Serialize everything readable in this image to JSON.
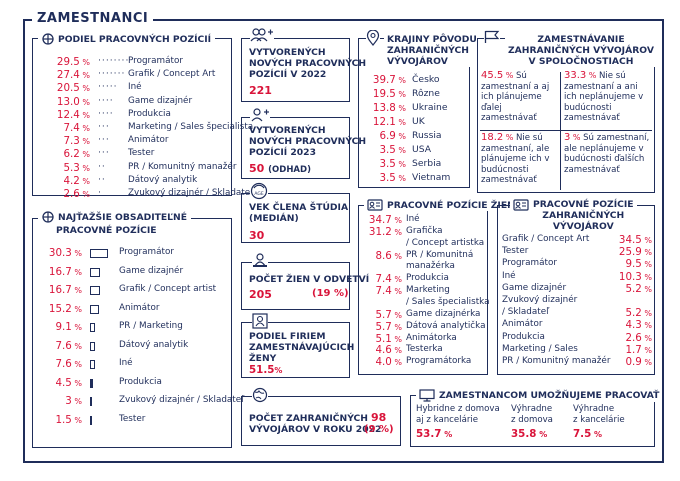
{
  "title": "ZAMESTNANCI",
  "positions": {
    "title": "PODIEL PRACOVNÝCH POZÍCIÍ",
    "items": [
      {
        "value": "29.5",
        "dots": "········",
        "label": "Programátor"
      },
      {
        "value": "27.4",
        "dots": "·······",
        "label": "Grafik / Concept Art"
      },
      {
        "value": "20.5",
        "dots": "·····",
        "label": "Iné"
      },
      {
        "value": "13.0",
        "dots": "····",
        "label": "Game dizajnér"
      },
      {
        "value": "12.4",
        "dots": "····",
        "label": "Produkcia"
      },
      {
        "value": "7.4",
        "dots": "···",
        "label": "Marketing / Sales špecialista"
      },
      {
        "value": "7.3",
        "dots": "···",
        "label": "Animátor"
      },
      {
        "value": "6.2",
        "dots": "···",
        "label": "Tester"
      },
      {
        "value": "5.3",
        "dots": "··",
        "label": "PR / Komunitný manažér"
      },
      {
        "value": "4.2",
        "dots": "··",
        "label": "Dátový analytik"
      },
      {
        "value": "2.6",
        "dots": "·",
        "label": "Zvukový dizajnér / Skladateľ"
      }
    ]
  },
  "hardest": {
    "title_line1": "NAJŤAŽŠIE OBSADITEĽNÉ",
    "title_line2": "PRACOVNÉ POZÍCIE",
    "items": [
      {
        "value": "30.3",
        "fill": 0.303,
        "label": "Programátor"
      },
      {
        "value": "16.7",
        "fill": 0.167,
        "label": "Game dizajnér"
      },
      {
        "value": "16.7",
        "fill": 0.167,
        "label": "Grafik / Concept artist"
      },
      {
        "value": "15.2",
        "fill": 0.152,
        "label": "Animátor"
      },
      {
        "value": "9.1",
        "fill": 0.091,
        "label": "PR / Marketing"
      },
      {
        "value": "7.6",
        "fill": 0.076,
        "label": "Dátový analytik"
      },
      {
        "value": "7.6",
        "fill": 0.076,
        "label": "Iné"
      },
      {
        "value": "4.5",
        "fill": 0.045,
        "label": "Produkcia"
      },
      {
        "value": "3",
        "fill": 0.03,
        "label": "Zvukový dizajnér / Skladateľ"
      },
      {
        "value": "1.5",
        "fill": 0.015,
        "label": "Tester"
      }
    ]
  },
  "created2022": {
    "l1": "VYTVORENÝCH",
    "l2": "NOVÝCH PRACOVNÝCH",
    "l3": "POZÍCIÍ V 2022",
    "value": "221"
  },
  "created2023": {
    "l1": "VYTVORENÝCH",
    "l2": "NOVÝCH PRACOVNÝCH",
    "l3": "POZÍCIÍ 2023",
    "value": "50",
    "note": "(ODHAD)"
  },
  "age": {
    "l1": "VEK ČLENA ŠTÚDIA",
    "l2": "(MEDIÁN)",
    "value": "30",
    "icon_text": "AGE"
  },
  "women": {
    "title": "POČET ŽIEN V ODVETVÍ",
    "value": "205",
    "pct": "(19 %)"
  },
  "firms": {
    "l1": "PODIEL FIRIEM",
    "l2": "ZAMESTNÁVAJÚCICH",
    "l3": "ŽENY",
    "value": "51.5"
  },
  "foreign": {
    "l1": "POČET ZAHRANIČNÝCH",
    "l2": "VÝVOJÁROV V ROKU 2022",
    "value": "98",
    "pct": "(9 %)"
  },
  "countries": {
    "l1": "KRAJINY PÔVODU",
    "l2": "ZAHRANIČNÝCH",
    "l3": "VÝVOJÁROV",
    "items": [
      {
        "value": "39.7",
        "label": "Česko"
      },
      {
        "value": "19.5",
        "label": "Rôzne"
      },
      {
        "value": "13.8",
        "label": "Ukraine"
      },
      {
        "value": "12.1",
        "label": "UK"
      },
      {
        "value": "6.9",
        "label": "Russia"
      },
      {
        "value": "3.5",
        "label": "USA"
      },
      {
        "value": "3.5",
        "label": "Serbia"
      },
      {
        "value": "3.5",
        "label": "Vietnam"
      }
    ]
  },
  "employment": {
    "l1": "ZAMESTNÁVANIE",
    "l2": "ZAHRANIČNÝCH VÝVOJÁROV",
    "l3": "V SPOLOČNOSTIACH",
    "cells": [
      {
        "value": "45.5",
        "text": "Sú zamestnaní a aj ich plánujeme ďalej zamestnávať"
      },
      {
        "value": "33.3",
        "text": "Nie sú zamestnaní a ani ich neplánujeme v budúcnosti zamestnávať"
      },
      {
        "value": "18.2",
        "text": "Nie sú zamestnaní, ale plánujeme ich v budúcnosti zamestnávať"
      },
      {
        "value": "3",
        "text": "Sú zamestnaní, ale neplánujeme v budúcnosti ďalších zamestnávať"
      }
    ]
  },
  "women_positions": {
    "title": "PRACOVNÉ POZÍCIE ŽIEN",
    "items": [
      {
        "value": "34.7",
        "label": "Iné"
      },
      {
        "value": "31.2",
        "label": "Grafička"
      },
      {
        "value": "",
        "label": "/ Concept artistka"
      },
      {
        "value": "8.6",
        "label": "PR / Komunitná"
      },
      {
        "value": "",
        "label": "manažérka"
      },
      {
        "value": "7.4",
        "label": "Produkcia"
      },
      {
        "value": "7.4",
        "label": "Marketing"
      },
      {
        "value": "",
        "label": "/ Sales špecialistka"
      },
      {
        "value": "5.7",
        "label": "Game dizajnérka"
      },
      {
        "value": "5.7",
        "label": "Dátová analytička"
      },
      {
        "value": "5.1",
        "label": "Animátorka"
      },
      {
        "value": "4.6",
        "label": "Testerka"
      },
      {
        "value": "4.0",
        "label": "Programátorka"
      }
    ]
  },
  "foreign_positions": {
    "l1": "PRACOVNÉ POZÍCIE",
    "l2": "ZAHRANIČNÝCH",
    "l3": "VÝVOJÁROV",
    "items": [
      {
        "label": "Grafik / Concept Art",
        "value": "34.5"
      },
      {
        "label": "Tester",
        "value": "25.9"
      },
      {
        "label": "Programátor",
        "value": "9.5"
      },
      {
        "label": "Iné",
        "value": "10.3"
      },
      {
        "label": "Game dizajnér",
        "value": "5.2"
      },
      {
        "label": "Zvukový dizajnér",
        "value": ""
      },
      {
        "label": "/ Skladateľ",
        "value": "5.2"
      },
      {
        "label": "Animátor",
        "value": "4.3"
      },
      {
        "label": "Produkcia",
        "value": "2.6"
      },
      {
        "label": "Marketing / Sales",
        "value": "1.7"
      },
      {
        "label": "PR / Komunitný manažér",
        "value": "0.9"
      }
    ]
  },
  "remote": {
    "title": "ZAMESTNANCOM UMOŽŇUJEME PRACOVAŤ",
    "cols": [
      {
        "l1": "Hybridne z domova",
        "l2": "aj z kancelárie",
        "value": "53.7"
      },
      {
        "l1": "Výhradne",
        "l2": "z domova",
        "value": "35.8"
      },
      {
        "l1": "Výhradne",
        "l2": "z kancelárie",
        "value": "7.5"
      }
    ]
  },
  "percent_sign": "%",
  "colors": {
    "navy": "#1f2d5a",
    "accent": "#d9143a"
  }
}
